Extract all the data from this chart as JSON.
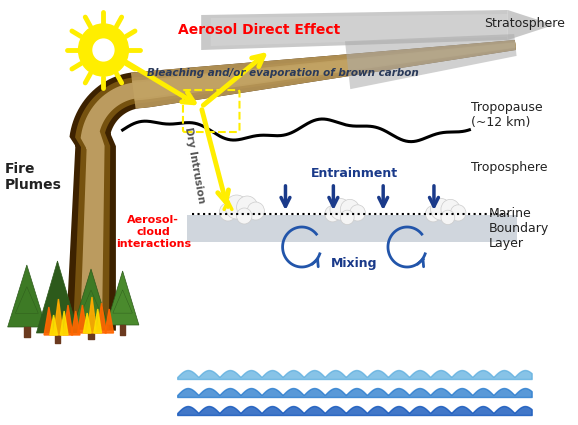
{
  "title": "",
  "labels": {
    "fire_plumes": "Fire\nPlumes",
    "aerosol_direct": "Aerosol Direct Effect",
    "bleaching": "Bleaching and/or evaporation of brown carbon",
    "dry_intrusion": "Dry Intrusion",
    "aerosol_cloud": "Aerosol-\ncloud\ninteractions",
    "entrainment": "Entrainment",
    "mixing": "Mixing",
    "stratosphere": "Stratosphere",
    "tropopause": "Tropopause\n(~12 km)",
    "troposphere": "Troposphere",
    "marine_boundary": "Marine\nBoundary\nLayer"
  },
  "colors": {
    "background": "#ffffff",
    "smoke_dark": "#3d2200",
    "smoke_mid": "#7a5510",
    "smoke_light": "#c8a96e",
    "smoke_tan": "#b8975a",
    "smoke_tan2": "#c8aa6a",
    "gray_strat": "#c0c0c0",
    "gray_strat2": "#d8d8d8",
    "yellow_arrow": "#ffee00",
    "yellow_sun": "#ffee00",
    "blue_arrow": "#1a3a8a",
    "blue_circle": "#2255aa",
    "red_text": "#ff0000",
    "blue_text": "#1a3a8a",
    "dark_text": "#222222",
    "gray_text": "#555555",
    "ocean_blue1": "#55aadd",
    "ocean_blue2": "#2277cc",
    "ocean_blue3": "#1155bb",
    "mbl_gray": "#b8c0cc",
    "green1": "#3d7a25",
    "green2": "#2d5a1b",
    "green3": "#4a8a2d",
    "trunk": "#6b3a1f",
    "fire_orange": "#ff6600",
    "fire_yellow": "#ffaa00",
    "fire_bright": "#ffdd00",
    "cloud_white": "#f5f5f5",
    "cloud_edge": "#cccccc",
    "black": "#111111",
    "white": "#ffffff"
  }
}
